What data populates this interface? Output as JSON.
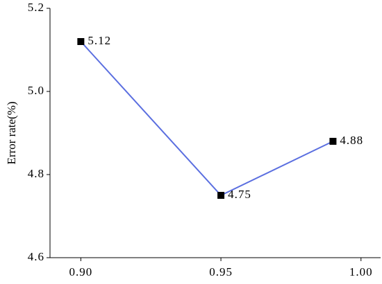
{
  "chart_data": {
    "type": "line",
    "y_label": "Error rate(%)",
    "x": [
      0.9,
      0.95,
      0.99
    ],
    "series": [
      {
        "color": "#5b6fe0",
        "values": [
          5.12,
          4.75,
          4.88
        ]
      }
    ],
    "xlim": [
      0.889,
      1.007
    ],
    "ylim": [
      4.6,
      5.2
    ],
    "xticks": [
      {
        "value": 0.9,
        "label": "0.90"
      },
      0.95,
      {
        "value": 1,
        "label": "1.00"
      }
    ],
    "yticks": [
      4.6,
      4.8,
      {
        "value": 5,
        "label": "5.0"
      },
      5.2
    ],
    "grid": false
  }
}
